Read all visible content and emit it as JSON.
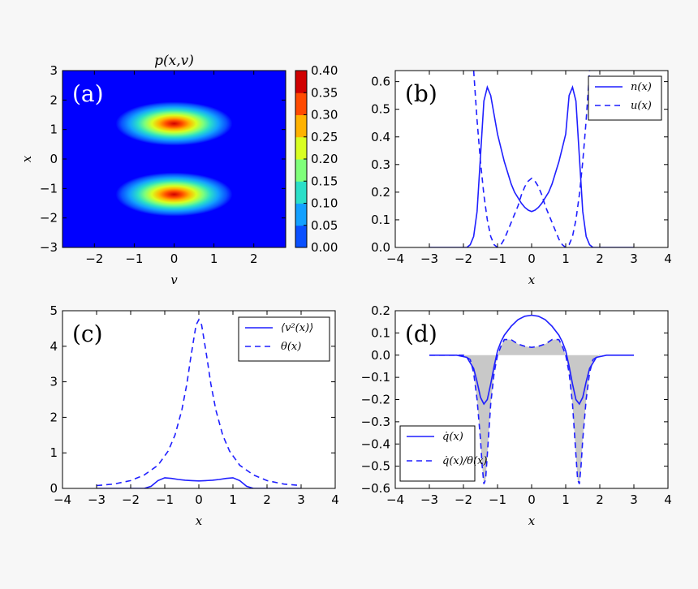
{
  "chart_data": [
    {
      "id": "a",
      "type": "heatmap",
      "panel_label": "(a)",
      "title": "p(x,v)",
      "xlabel": "v",
      "ylabel": "x",
      "xlim": [
        -2.8,
        2.8
      ],
      "ylim": [
        -3,
        3
      ],
      "xticks": [
        "−2",
        "−1",
        "0",
        "1",
        "2"
      ],
      "yticks": [
        "−3",
        "−2",
        "−1",
        "0",
        "1",
        "2",
        "3"
      ],
      "blobs": [
        {
          "center_v": 0.0,
          "center_x": 1.2,
          "peak": 0.4
        },
        {
          "center_v": 0.0,
          "center_x": -1.2,
          "peak": 0.4
        }
      ],
      "colorbar": {
        "ticks": [
          "0.00",
          "0.05",
          "0.10",
          "0.15",
          "0.20",
          "0.25",
          "0.30",
          "0.35",
          "0.40"
        ],
        "colors": [
          "#0000ff",
          "#0a50ff",
          "#13a0ff",
          "#2bdfc8",
          "#7fff7a",
          "#d9ff22",
          "#ffb200",
          "#ff4a00",
          "#d00000"
        ]
      }
    },
    {
      "id": "b",
      "type": "line",
      "panel_label": "(b)",
      "xlabel": "x",
      "ylabel": "",
      "xlim": [
        -4,
        4
      ],
      "ylim": [
        0,
        0.64
      ],
      "xticks": [
        "−4",
        "−3",
        "−2",
        "−1",
        "0",
        "1",
        "2",
        "3",
        "4"
      ],
      "yticks": [
        "0.0",
        "0.1",
        "0.2",
        "0.3",
        "0.4",
        "0.5",
        "0.6"
      ],
      "legend_placement": "top-right",
      "series": [
        {
          "name": "n(x)",
          "style": "solid",
          "x": [
            -3.0,
            -2.2,
            -1.9,
            -1.8,
            -1.7,
            -1.6,
            -1.5,
            -1.4,
            -1.3,
            -1.2,
            -1.1,
            -1.0,
            -0.9,
            -0.8,
            -0.7,
            -0.6,
            -0.5,
            -0.4,
            -0.3,
            -0.2,
            -0.1,
            0.0,
            0.1,
            0.2,
            0.3,
            0.4,
            0.5,
            0.6,
            0.7,
            0.8,
            0.9,
            1.0,
            1.1,
            1.2,
            1.3,
            1.4,
            1.5,
            1.6,
            1.7,
            1.8,
            1.9,
            2.2,
            3.0
          ],
          "y": [
            0.0,
            0.0,
            0.0,
            0.01,
            0.04,
            0.13,
            0.33,
            0.53,
            0.58,
            0.55,
            0.48,
            0.41,
            0.36,
            0.31,
            0.27,
            0.23,
            0.2,
            0.18,
            0.16,
            0.145,
            0.135,
            0.13,
            0.135,
            0.145,
            0.16,
            0.18,
            0.2,
            0.23,
            0.27,
            0.31,
            0.36,
            0.41,
            0.55,
            0.58,
            0.53,
            0.33,
            0.13,
            0.04,
            0.01,
            0.0,
            0.0,
            0.0,
            0.0
          ]
        },
        {
          "name": "u(x)",
          "style": "dashed",
          "x": [
            -1.7,
            -1.6,
            -1.5,
            -1.4,
            -1.3,
            -1.2,
            -1.1,
            -1.0,
            -0.9,
            -0.8,
            -0.7,
            -0.6,
            -0.5,
            -0.4,
            -0.3,
            -0.2,
            -0.1,
            0.0,
            0.1,
            0.2,
            0.3,
            0.4,
            0.5,
            0.6,
            0.7,
            0.8,
            0.9,
            1.0,
            1.1,
            1.2,
            1.3,
            1.4,
            1.5,
            1.6,
            1.7
          ],
          "y": [
            0.64,
            0.46,
            0.31,
            0.19,
            0.1,
            0.04,
            0.01,
            0.0,
            0.01,
            0.03,
            0.06,
            0.09,
            0.12,
            0.15,
            0.19,
            0.22,
            0.24,
            0.25,
            0.24,
            0.22,
            0.19,
            0.15,
            0.12,
            0.09,
            0.06,
            0.03,
            0.01,
            0.0,
            0.01,
            0.04,
            0.1,
            0.19,
            0.31,
            0.46,
            0.64
          ]
        }
      ]
    },
    {
      "id": "c",
      "type": "line",
      "panel_label": "(c)",
      "xlabel": "x",
      "ylabel": "",
      "xlim": [
        -4,
        4
      ],
      "ylim": [
        0,
        5
      ],
      "xticks": [
        "−4",
        "−3",
        "−2",
        "−1",
        "0",
        "1",
        "2",
        "3",
        "4"
      ],
      "yticks": [
        "0",
        "1",
        "2",
        "3",
        "4",
        "5"
      ],
      "legend_placement": "top-right",
      "series": [
        {
          "name": "⟨v²(x)⟩",
          "style": "solid",
          "x": [
            -3.0,
            -2.0,
            -1.6,
            -1.4,
            -1.2,
            -1.0,
            -0.8,
            -0.6,
            -0.4,
            -0.2,
            0.0,
            0.2,
            0.4,
            0.6,
            0.8,
            1.0,
            1.2,
            1.4,
            1.6,
            2.0,
            3.0
          ],
          "y": [
            0.0,
            0.0,
            0.0,
            0.06,
            0.22,
            0.3,
            0.28,
            0.25,
            0.23,
            0.22,
            0.21,
            0.22,
            0.23,
            0.25,
            0.28,
            0.3,
            0.22,
            0.06,
            0.0,
            0.0,
            0.0
          ]
        },
        {
          "name": "θ(x)",
          "style": "dashed",
          "x": [
            -3.0,
            -2.5,
            -2.0,
            -1.6,
            -1.2,
            -0.9,
            -0.7,
            -0.5,
            -0.35,
            -0.25,
            -0.15,
            -0.08,
            0.0,
            0.08,
            0.15,
            0.25,
            0.35,
            0.5,
            0.7,
            0.9,
            1.2,
            1.6,
            2.0,
            2.5,
            3.0
          ],
          "y": [
            0.08,
            0.12,
            0.22,
            0.38,
            0.65,
            1.05,
            1.5,
            2.2,
            2.95,
            3.6,
            4.2,
            4.6,
            4.75,
            4.6,
            4.2,
            3.6,
            2.95,
            2.2,
            1.5,
            1.05,
            0.65,
            0.38,
            0.22,
            0.12,
            0.08
          ]
        }
      ]
    },
    {
      "id": "d",
      "type": "area",
      "panel_label": "(d)",
      "xlabel": "x",
      "ylabel": "",
      "xlim": [
        -4,
        4
      ],
      "ylim": [
        -0.6,
        0.2
      ],
      "xticks": [
        "−4",
        "−3",
        "−2",
        "−1",
        "0",
        "1",
        "2",
        "3",
        "4"
      ],
      "yticks": [
        "−0.6",
        "−0.5",
        "−0.4",
        "−0.3",
        "−0.2",
        "−0.1",
        "0.0",
        "0.1",
        "0.2"
      ],
      "legend_placement": "bottom-left",
      "series": [
        {
          "name": "q̇(x)",
          "style": "solid",
          "x": [
            -3.0,
            -2.2,
            -1.9,
            -1.7,
            -1.6,
            -1.5,
            -1.4,
            -1.3,
            -1.2,
            -1.1,
            -1.0,
            -0.9,
            -0.8,
            -0.6,
            -0.4,
            -0.2,
            0.0,
            0.2,
            0.4,
            0.6,
            0.8,
            0.9,
            1.0,
            1.1,
            1.2,
            1.3,
            1.4,
            1.5,
            1.6,
            1.7,
            1.9,
            2.2,
            3.0
          ],
          "y": [
            0.0,
            0.0,
            -0.01,
            -0.06,
            -0.12,
            -0.19,
            -0.22,
            -0.2,
            -0.13,
            -0.05,
            0.02,
            0.06,
            0.09,
            0.13,
            0.16,
            0.175,
            0.18,
            0.175,
            0.16,
            0.13,
            0.09,
            0.06,
            0.02,
            -0.05,
            -0.13,
            -0.2,
            -0.22,
            -0.19,
            -0.12,
            -0.06,
            -0.01,
            0.0,
            0.0
          ]
        },
        {
          "name": "q̇(x)/θ(x)",
          "style": "dashed",
          "x": [
            -3.0,
            -2.0,
            -1.8,
            -1.7,
            -1.6,
            -1.5,
            -1.45,
            -1.4,
            -1.35,
            -1.3,
            -1.2,
            -1.1,
            -1.0,
            -0.9,
            -0.8,
            -0.6,
            -0.4,
            -0.2,
            0.0,
            0.2,
            0.4,
            0.6,
            0.8,
            0.9,
            1.0,
            1.1,
            1.2,
            1.3,
            1.35,
            1.4,
            1.45,
            1.5,
            1.6,
            1.7,
            1.8,
            2.0
          ],
          "y": [
            0.0,
            0.0,
            -0.02,
            -0.08,
            -0.2,
            -0.38,
            -0.5,
            -0.58,
            -0.56,
            -0.45,
            -0.22,
            -0.08,
            0.0,
            0.04,
            0.07,
            0.07,
            0.05,
            0.04,
            0.035,
            0.04,
            0.05,
            0.07,
            0.07,
            0.04,
            0.0,
            -0.08,
            -0.22,
            -0.45,
            -0.56,
            -0.58,
            -0.5,
            -0.38,
            -0.2,
            -0.08,
            -0.02,
            0.0
          ]
        }
      ]
    }
  ]
}
